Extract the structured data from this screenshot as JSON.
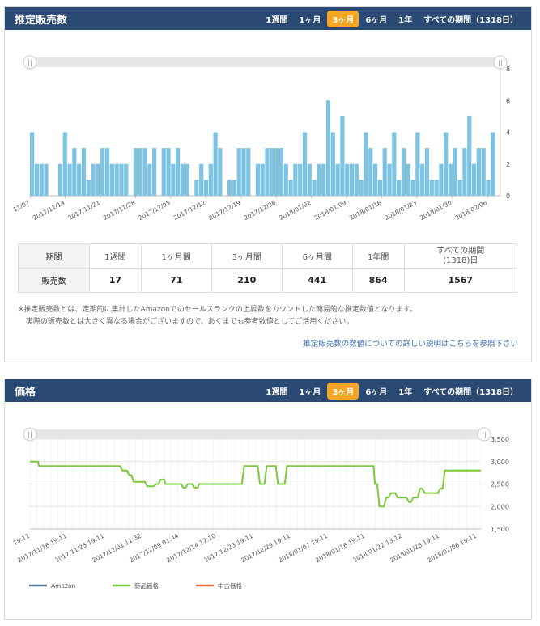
{
  "sales_panel": {
    "title": "推定販売数",
    "ranges": [
      "1週間",
      "1ヶ月",
      "3ヶ月",
      "6ヶ月",
      "1年",
      "すべての期間（1318日）"
    ],
    "active_range": "3ヶ月",
    "table": {
      "header_label": "期間",
      "value_label": "販売数",
      "columns": [
        {
          "period": "1週間",
          "count": "17"
        },
        {
          "period": "1ヶ月間",
          "count": "71"
        },
        {
          "period": "3ヶ月間",
          "count": "210"
        },
        {
          "period": "6ヶ月間",
          "count": "441"
        },
        {
          "period": "1年間",
          "count": "864"
        },
        {
          "period": "すべての期間\n(1318)日",
          "count": "1567"
        }
      ]
    },
    "note_line1": "※推定販売数とは、定期的に集計したAmazonでのセールスランクの上昇数をカウントした簡易的な推定数値となります。",
    "note_line2": "実際の販売数とは大きく異なる場合がございますので、あくまでも参考数値としてご活用ください。",
    "link_text": "推定販売数の数値についての詳しい説明はこちらを参照下さい"
  },
  "price_panel": {
    "title": "価格",
    "ranges": [
      "1週間",
      "1ヶ月",
      "3ヶ月",
      "6ヶ月",
      "1年",
      "すべての期間（1318日）"
    ],
    "active_range": "3ヶ月"
  },
  "chart_data": [
    {
      "type": "bar",
      "title": "",
      "ylim": [
        0,
        8
      ],
      "yticks": [
        0,
        2,
        4,
        6,
        8
      ],
      "xticks": [
        "11/07",
        "2017/11/14",
        "2017/11/21",
        "2017/11/28",
        "2017/12/05",
        "2017/12/12",
        "2017/12/19",
        "2017/12/26",
        "2018/01/02",
        "2018/01/09",
        "2018/01/16",
        "2018/01/23",
        "2018/01/30",
        "2018/02/06"
      ],
      "color": "#7ec4e2",
      "values": [
        4,
        2,
        2,
        2,
        0,
        0,
        2,
        4,
        2,
        3,
        2,
        3,
        1,
        2,
        2,
        3,
        3,
        2,
        2,
        2,
        2,
        0,
        3,
        3,
        3,
        2,
        3,
        0,
        3,
        3,
        2,
        3,
        2,
        2,
        0,
        1,
        2,
        1,
        2,
        4,
        3,
        0,
        1,
        1,
        3,
        3,
        3,
        0,
        2,
        2,
        3,
        3,
        3,
        3,
        2,
        1,
        2,
        2,
        4,
        2,
        1,
        2,
        2,
        6,
        4,
        2,
        5,
        2,
        2,
        2,
        1,
        4,
        3,
        2,
        1,
        3,
        2,
        4,
        1,
        3,
        2,
        1,
        4,
        2,
        3,
        1,
        1,
        2,
        4,
        2,
        3,
        1,
        3,
        5,
        2,
        3,
        3,
        1,
        4
      ]
    },
    {
      "type": "line",
      "title": "",
      "ylim": [
        1500,
        3500
      ],
      "yticks": [
        "1,500",
        "2,000",
        "2,500",
        "3,000",
        "3,500"
      ],
      "xticks": [
        "19:11",
        "2017/11/16 19:11",
        "2017/11/25 19:11",
        "2017/12/01 11:32",
        "2017/12/09 01:44",
        "2017/12/14 17:10",
        "2017/12/23 19:11",
        "2017/12/29 19:11",
        "2018/01/07 19:11",
        "2018/01/16 19:11",
        "2018/01/22 13:12",
        "2018/01/28 19:11",
        "2018/02/06 19:11"
      ],
      "legend": [
        {
          "name": "Amazon",
          "color": "#5a7a94"
        },
        {
          "name": "新品価格",
          "color": "#7cc83c"
        },
        {
          "name": "中古価格",
          "color": "#ef6a3a"
        }
      ],
      "series": [
        {
          "name": "新品価格",
          "color": "#7cc83c",
          "points": [
            [
              0,
              3000
            ],
            [
              0.018,
              3000
            ],
            [
              0.02,
              2900
            ],
            [
              0.2,
              2900
            ],
            [
              0.205,
              2800
            ],
            [
              0.215,
              2800
            ],
            [
              0.22,
              2700
            ],
            [
              0.225,
              2700
            ],
            [
              0.23,
              2550
            ],
            [
              0.255,
              2550
            ],
            [
              0.26,
              2450
            ],
            [
              0.275,
              2450
            ],
            [
              0.28,
              2500
            ],
            [
              0.285,
              2500
            ],
            [
              0.29,
              2600
            ],
            [
              0.298,
              2600
            ],
            [
              0.3,
              2500
            ],
            [
              0.335,
              2500
            ],
            [
              0.34,
              2420
            ],
            [
              0.345,
              2420
            ],
            [
              0.35,
              2500
            ],
            [
              0.36,
              2500
            ],
            [
              0.365,
              2420
            ],
            [
              0.372,
              2420
            ],
            [
              0.375,
              2500
            ],
            [
              0.47,
              2500
            ],
            [
              0.475,
              2900
            ],
            [
              0.505,
              2900
            ],
            [
              0.51,
              2500
            ],
            [
              0.52,
              2500
            ],
            [
              0.525,
              2900
            ],
            [
              0.545,
              2900
            ],
            [
              0.55,
              2500
            ],
            [
              0.565,
              2500
            ],
            [
              0.57,
              2900
            ],
            [
              0.762,
              2900
            ],
            [
              0.765,
              2500
            ],
            [
              0.77,
              2500
            ],
            [
              0.775,
              2000
            ],
            [
              0.785,
              2000
            ],
            [
              0.79,
              2200
            ],
            [
              0.795,
              2200
            ],
            [
              0.8,
              2300
            ],
            [
              0.81,
              2300
            ],
            [
              0.815,
              2200
            ],
            [
              0.835,
              2200
            ],
            [
              0.84,
              2100
            ],
            [
              0.845,
              2100
            ],
            [
              0.85,
              2200
            ],
            [
              0.86,
              2200
            ],
            [
              0.865,
              2400
            ],
            [
              0.87,
              2400
            ],
            [
              0.875,
              2300
            ],
            [
              0.905,
              2300
            ],
            [
              0.91,
              2400
            ],
            [
              0.915,
              2400
            ],
            [
              0.92,
              2800
            ],
            [
              1.0,
              2800
            ]
          ]
        }
      ]
    }
  ]
}
